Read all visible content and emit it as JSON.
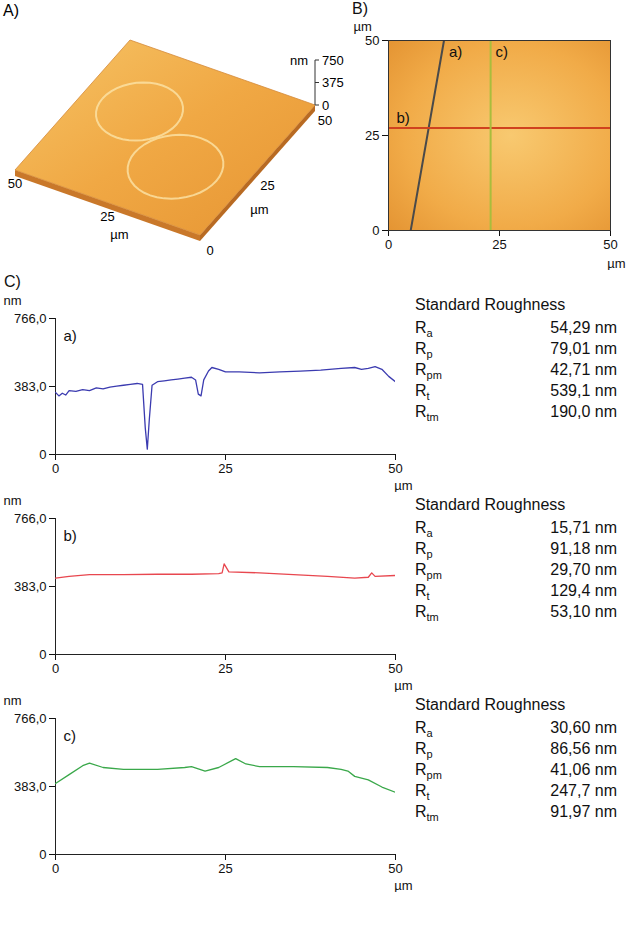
{
  "section_label": "C)",
  "chart_data": [
    {
      "type": "surface3d",
      "title": "A)",
      "xlim": [
        0,
        50
      ],
      "xticks": [
        25,
        50
      ],
      "xlabel": "µm",
      "ylim": [
        0,
        50
      ],
      "yticks": [
        0,
        25,
        50
      ],
      "ylabel": "µm",
      "zlim": [
        0,
        750
      ],
      "zticks": [
        0,
        375,
        750
      ],
      "zlabel": "nm"
    },
    {
      "type": "map",
      "title": "B)",
      "xlim": [
        0,
        50
      ],
      "xticks": [
        0,
        25,
        50
      ],
      "xlabel": "µm",
      "ylim": [
        0,
        50
      ],
      "yticks": [
        0,
        25,
        50
      ],
      "ylabel": "µm",
      "series": [
        {
          "name": "a)",
          "color": "#4a4a4a",
          "x": [
            5,
            12.5
          ],
          "y": [
            0,
            50
          ]
        },
        {
          "name": "b)",
          "color": "#d0421e",
          "x": [
            0,
            50
          ],
          "y": [
            27,
            27
          ]
        },
        {
          "name": "c)",
          "color": "#a9bd3c",
          "x": [
            23,
            23
          ],
          "y": [
            0,
            50
          ]
        }
      ]
    },
    {
      "type": "line",
      "title": "a)",
      "color": "#3b3bb0",
      "xlim": [
        0,
        50
      ],
      "xticks": [
        0,
        25,
        50
      ],
      "xlabel": "µm",
      "ylim": [
        0,
        766
      ],
      "yticks": [
        0,
        {
          "value": 383,
          "label": "383,0"
        },
        {
          "value": 766,
          "label": "766,0"
        }
      ],
      "ylabel": "nm",
      "x": [
        0,
        0.5,
        1,
        1.5,
        2,
        3,
        4,
        5,
        6,
        7,
        8,
        9,
        10,
        11,
        12,
        12.8,
        13.2,
        13.5,
        13.8,
        14.2,
        15,
        16,
        17,
        18,
        19,
        20,
        20.6,
        21,
        21.4,
        21.8,
        22.5,
        23,
        24,
        25,
        27,
        30,
        33,
        36,
        39,
        42,
        44,
        45,
        46,
        47,
        48,
        49,
        50
      ],
      "values": [
        350,
        330,
        345,
        335,
        360,
        355,
        365,
        360,
        375,
        370,
        380,
        385,
        390,
        395,
        400,
        395,
        150,
        30,
        200,
        390,
        410,
        415,
        420,
        425,
        430,
        435,
        420,
        340,
        330,
        420,
        470,
        490,
        480,
        465,
        465,
        460,
        465,
        470,
        475,
        485,
        490,
        480,
        485,
        495,
        480,
        440,
        410
      ],
      "roughness": {
        "title": "Standard Roughness",
        "rows": [
          {
            "symbol": "R",
            "sub": "a",
            "value": "54,29 nm"
          },
          {
            "symbol": "R",
            "sub": "p",
            "value": "79,01 nm"
          },
          {
            "symbol": "R",
            "sub": "pm",
            "value": "42,71 nm"
          },
          {
            "symbol": "R",
            "sub": "t",
            "value": "539,1 nm"
          },
          {
            "symbol": "R",
            "sub": "tm",
            "value": "190,0 nm"
          }
        ]
      }
    },
    {
      "type": "line",
      "title": "b)",
      "color": "#e8474f",
      "xlim": [
        0,
        50
      ],
      "xticks": [
        0,
        25,
        50
      ],
      "xlabel": "µm",
      "ylim": [
        0,
        766
      ],
      "yticks": [
        0,
        {
          "value": 383,
          "label": "383,0"
        },
        {
          "value": 766,
          "label": "766,0"
        }
      ],
      "ylabel": "nm",
      "x": [
        0,
        2,
        5,
        10,
        15,
        20,
        24,
        24.5,
        24.8,
        25.5,
        30,
        35,
        40,
        44,
        46,
        46.5,
        47,
        50
      ],
      "values": [
        430,
        440,
        450,
        450,
        452,
        452,
        455,
        460,
        510,
        465,
        460,
        450,
        440,
        430,
        435,
        460,
        440,
        445
      ],
      "roughness": {
        "title": "Standard Roughness",
        "rows": [
          {
            "symbol": "R",
            "sub": "a",
            "value": "15,71 nm"
          },
          {
            "symbol": "R",
            "sub": "p",
            "value": "91,18 nm"
          },
          {
            "symbol": "R",
            "sub": "pm",
            "value": "29,70 nm"
          },
          {
            "symbol": "R",
            "sub": "t",
            "value": "129,4 nm"
          },
          {
            "symbol": "R",
            "sub": "tm",
            "value": "53,10 nm"
          }
        ]
      }
    },
    {
      "type": "line",
      "title": "c)",
      "color": "#3aa84a",
      "xlim": [
        0,
        50
      ],
      "xticks": [
        0,
        25,
        50
      ],
      "xlabel": "µm",
      "ylim": [
        0,
        766
      ],
      "yticks": [
        0,
        {
          "value": 383,
          "label": "383,0"
        },
        {
          "value": 766,
          "label": "766,0"
        }
      ],
      "ylabel": "nm",
      "x": [
        0,
        2,
        4,
        5,
        7,
        10,
        15,
        19,
        20,
        22,
        24,
        26,
        26.5,
        28,
        30,
        35,
        40,
        42,
        43,
        44,
        46,
        48,
        50
      ],
      "values": [
        400,
        450,
        500,
        515,
        490,
        480,
        480,
        490,
        495,
        470,
        490,
        530,
        540,
        510,
        495,
        495,
        490,
        480,
        470,
        440,
        420,
        380,
        350
      ],
      "roughness": {
        "title": "Standard Roughness",
        "rows": [
          {
            "symbol": "R",
            "sub": "a",
            "value": "30,60 nm"
          },
          {
            "symbol": "R",
            "sub": "p",
            "value": "86,56 nm"
          },
          {
            "symbol": "R",
            "sub": "pm",
            "value": "41,06 nm"
          },
          {
            "symbol": "R",
            "sub": "t",
            "value": "247,7 nm"
          },
          {
            "symbol": "R",
            "sub": "tm",
            "value": "91,97 nm"
          }
        ]
      }
    }
  ]
}
